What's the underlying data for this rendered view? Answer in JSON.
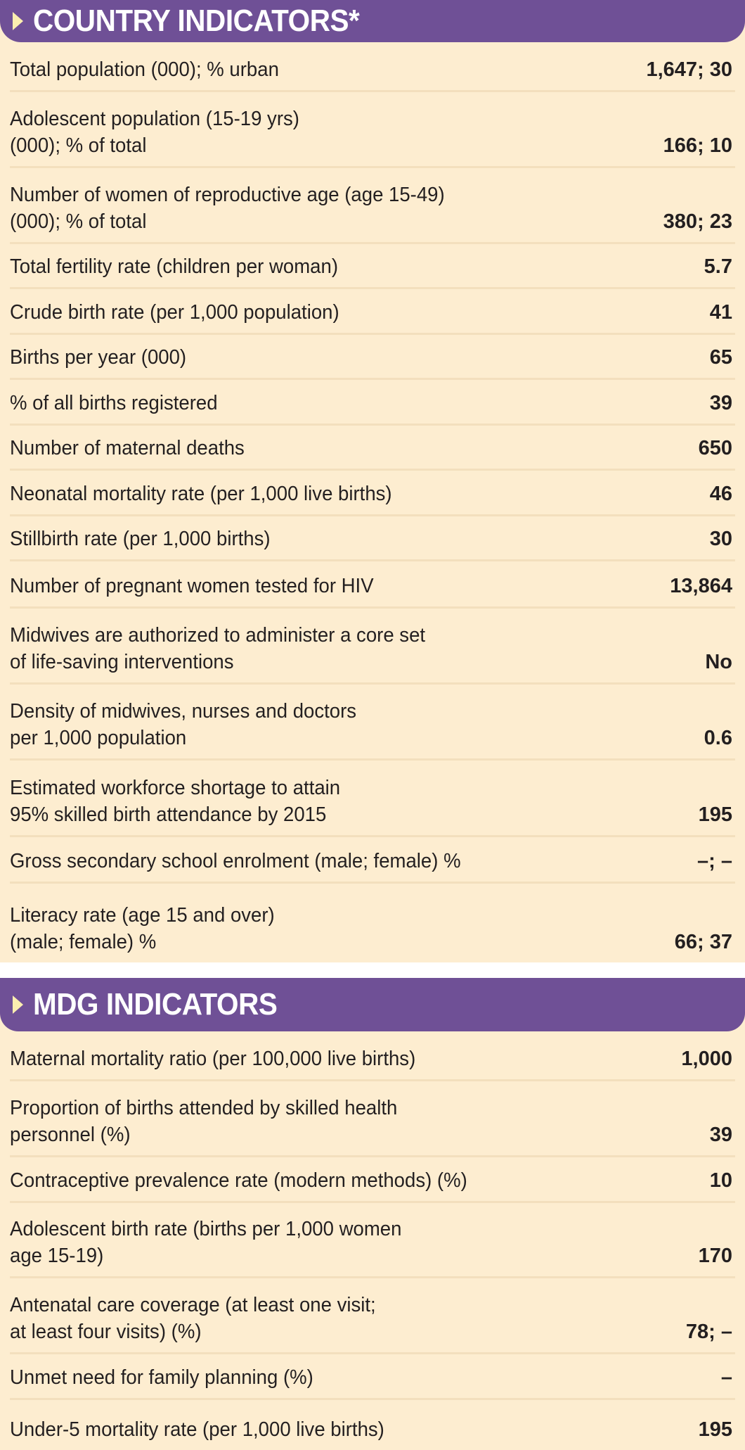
{
  "country": {
    "title": "COUNTRY INDICATORS*",
    "rows": [
      {
        "label": "Total population (000); % urban",
        "value": "1,647; 30"
      },
      {
        "label": "Adolescent population (15-19 yrs)\n(000); % of total",
        "value": "166; 10"
      },
      {
        "label": "Number of women of reproductive age (age 15-49)\n(000); % of total",
        "value": "380; 23"
      },
      {
        "label": "Total fertility rate (children per woman)",
        "value": "5.7"
      },
      {
        "label": "Crude birth rate (per 1,000 population)",
        "value": "41"
      },
      {
        "label": "Births per year (000)",
        "value": "65"
      },
      {
        "label": "% of all births registered",
        "value": "39"
      },
      {
        "label": "Number of maternal deaths",
        "value": "650"
      },
      {
        "label": "Neonatal mortality rate (per 1,000 live births)",
        "value": "46"
      },
      {
        "label": "Stillbirth rate (per 1,000 births)",
        "value": "30"
      },
      {
        "label": "Number of pregnant women tested for HIV",
        "value": "13,864"
      },
      {
        "label": "Midwives are authorized to administer a core set\nof life-saving interventions",
        "value": "No"
      },
      {
        "label": "Density of midwives, nurses and doctors\nper 1,000 population",
        "value": "0.6"
      },
      {
        "label": "Estimated workforce shortage to attain\n95% skilled birth attendance by 2015",
        "value": "195"
      },
      {
        "label": "Gross secondary school enrolment (male; female) %",
        "value": "–; –"
      },
      {
        "label": "Literacy rate (age 15 and over)\n(male; female) %",
        "value": "66; 37"
      }
    ]
  },
  "mdg": {
    "title": "MDG INDICATORS",
    "rows": [
      {
        "label": "Maternal mortality ratio (per 100,000 live births)",
        "value": "1,000"
      },
      {
        "label": "Proportion of births attended by skilled health\npersonnel (%)",
        "value": "39"
      },
      {
        "label": "Contraceptive prevalence rate (modern methods) (%)",
        "value": "10"
      },
      {
        "label": "Adolescent birth rate (births per 1,000 women\nage 15-19)",
        "value": "170"
      },
      {
        "label": "Antenatal care coverage (at least one visit;\nat least four visits) (%)",
        "value": "78; –"
      },
      {
        "label": "Unmet need for family planning (%)",
        "value": "–"
      },
      {
        "label": "Under-5 mortality rate (per 1,000 live births)",
        "value": "195"
      }
    ]
  },
  "colors": {
    "header": "#6f5096",
    "background": "#fdedd0",
    "arrow": "#fbeeb0"
  }
}
